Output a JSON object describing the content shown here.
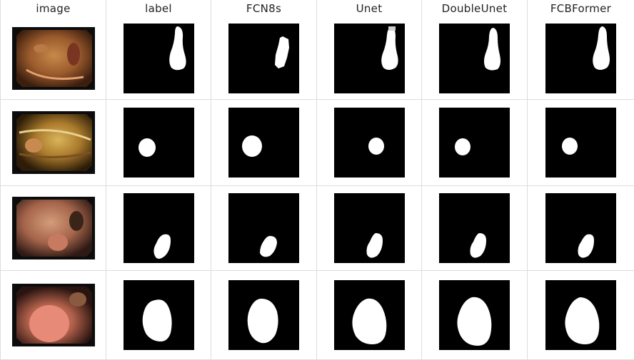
{
  "columns": [
    "image",
    "label",
    "FCN8s",
    "Unet",
    "DoubleUnet",
    "FCBFormer"
  ],
  "colors": {
    "grid_line": "#dcdcdc",
    "mask_bg": "#000000",
    "mask_fg": "#ffffff"
  },
  "rows_count": 4
}
